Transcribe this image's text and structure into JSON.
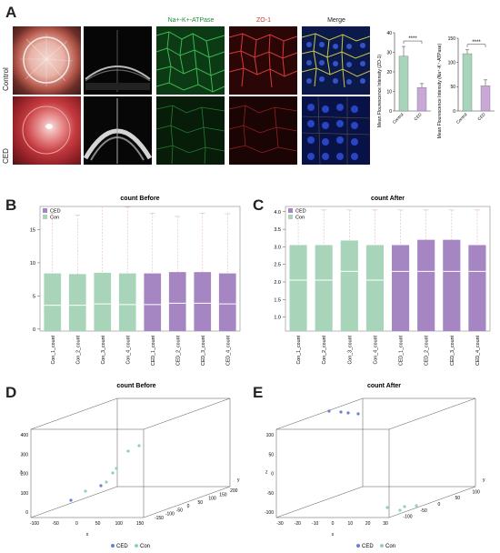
{
  "panel_labels": {
    "a": "A",
    "b": "B",
    "c": "C",
    "d": "D",
    "e": "E"
  },
  "panelA": {
    "col_headers": [
      "Na+-K+-ATPase",
      "ZO-1",
      "Merge"
    ],
    "row_labels": [
      "Control",
      "CED"
    ],
    "bar_zo1": {
      "ylabel": "Mean Flourescence Intensity (ZO-1)",
      "yticks": [
        "0",
        "10",
        "20",
        "30",
        "40"
      ],
      "categories": [
        "Control",
        "CED"
      ],
      "sig": "****"
    },
    "bar_atp": {
      "ylabel": "Mean Flourescence Intensity (Na⁺-K⁺-ATPase)",
      "yticks": [
        "0",
        "50",
        "100",
        "150"
      ],
      "categories": [
        "Control",
        "CED"
      ],
      "sig": "****"
    }
  },
  "chart_data": [
    {
      "type": "bar",
      "id": "zo1",
      "categories": [
        "Control",
        "CED"
      ],
      "values": [
        28,
        12
      ],
      "errors": [
        5,
        2
      ],
      "ylim": [
        0,
        40
      ],
      "colors": [
        "#a8d5b9",
        "#c9a8d8"
      ]
    },
    {
      "type": "bar",
      "id": "atp",
      "categories": [
        "Control",
        "CED"
      ],
      "values": [
        118,
        52
      ],
      "errors": [
        8,
        12
      ],
      "ylim": [
        0,
        150
      ],
      "colors": [
        "#a8d5b9",
        "#c9a8d8"
      ]
    },
    {
      "type": "box",
      "id": "before",
      "title": "count Before",
      "legend": [
        "CED",
        "Con"
      ],
      "categories": [
        "Con_1_count",
        "Con_2_count",
        "Con_3_count",
        "Con_4_count",
        "CED_1_count",
        "CED_2_count",
        "CED_3_count",
        "CED_4_count"
      ],
      "groups": [
        "Con",
        "Con",
        "Con",
        "Con",
        "CED",
        "CED",
        "CED",
        "CED"
      ],
      "q3": [
        8.4,
        8.3,
        8.5,
        8.4,
        8.4,
        8.6,
        8.6,
        8.4
      ],
      "median": [
        3.6,
        3.6,
        3.8,
        3.7,
        3.7,
        3.9,
        3.9,
        3.8
      ],
      "whisker_top": [
        17.5,
        17.2,
        18.5,
        18.4,
        17.5,
        17.0,
        17.5,
        17.4
      ],
      "yticks": [
        "0",
        "5",
        "10",
        "15"
      ],
      "ylim": [
        -0.3,
        18.5
      ],
      "colors": {
        "Con": "#a8d5b9",
        "CED": "#a585c2"
      }
    },
    {
      "type": "box",
      "id": "after",
      "title": "count After",
      "legend": [
        "CED",
        "Con"
      ],
      "categories": [
        "Con_1_count",
        "Con_2_count",
        "Con_3_count",
        "Con_4_count",
        "CED_1_count",
        "CED_2_count",
        "CED_3_count",
        "CED_4_count"
      ],
      "groups": [
        "Con",
        "Con",
        "Con",
        "Con",
        "CED",
        "CED",
        "CED",
        "CED"
      ],
      "q3": [
        3.05,
        3.05,
        3.18,
        3.05,
        3.05,
        3.2,
        3.2,
        3.05
      ],
      "median": [
        2.05,
        2.05,
        2.3,
        2.05,
        2.3,
        2.3,
        2.3,
        2.3
      ],
      "whisker_top": [
        4.05,
        4.05,
        4.05,
        4.05,
        4.05,
        4.05,
        4.05,
        4.05
      ],
      "yticks": [
        "1.0",
        "1.5",
        "2.0",
        "2.5",
        "3.0",
        "3.5",
        "4.0"
      ],
      "ylim": [
        0.6,
        4.15
      ],
      "colors": {
        "Con": "#a8d5b9",
        "CED": "#a585c2"
      }
    },
    {
      "type": "scatter3d",
      "id": "pcaBefore",
      "title": "count Before",
      "legend": [
        "CED",
        "Con"
      ],
      "xticks": [
        "-100",
        "-50",
        "0",
        "50",
        "100",
        "150"
      ],
      "yticks": [
        "-150",
        "-100",
        "-50",
        "0",
        "50",
        "100",
        "150",
        "200"
      ],
      "zticks": [
        "0",
        "100",
        "200",
        "300",
        "400"
      ],
      "xlabel": "x",
      "ylabel": "y",
      "zlabel": "z"
    },
    {
      "type": "scatter3d",
      "id": "pcaAfter",
      "title": "count After",
      "legend": [
        "CED",
        "Con"
      ],
      "xticks": [
        "-30",
        "-20",
        "-10",
        "0",
        "10",
        "20",
        "30"
      ],
      "yticks": [
        "-100",
        "-50",
        "0",
        "50",
        "100"
      ],
      "zticks": [
        "-100",
        "-50",
        "0",
        "50",
        "100"
      ],
      "xlabel": "x",
      "ylabel": "y",
      "zlabel": "z"
    }
  ]
}
